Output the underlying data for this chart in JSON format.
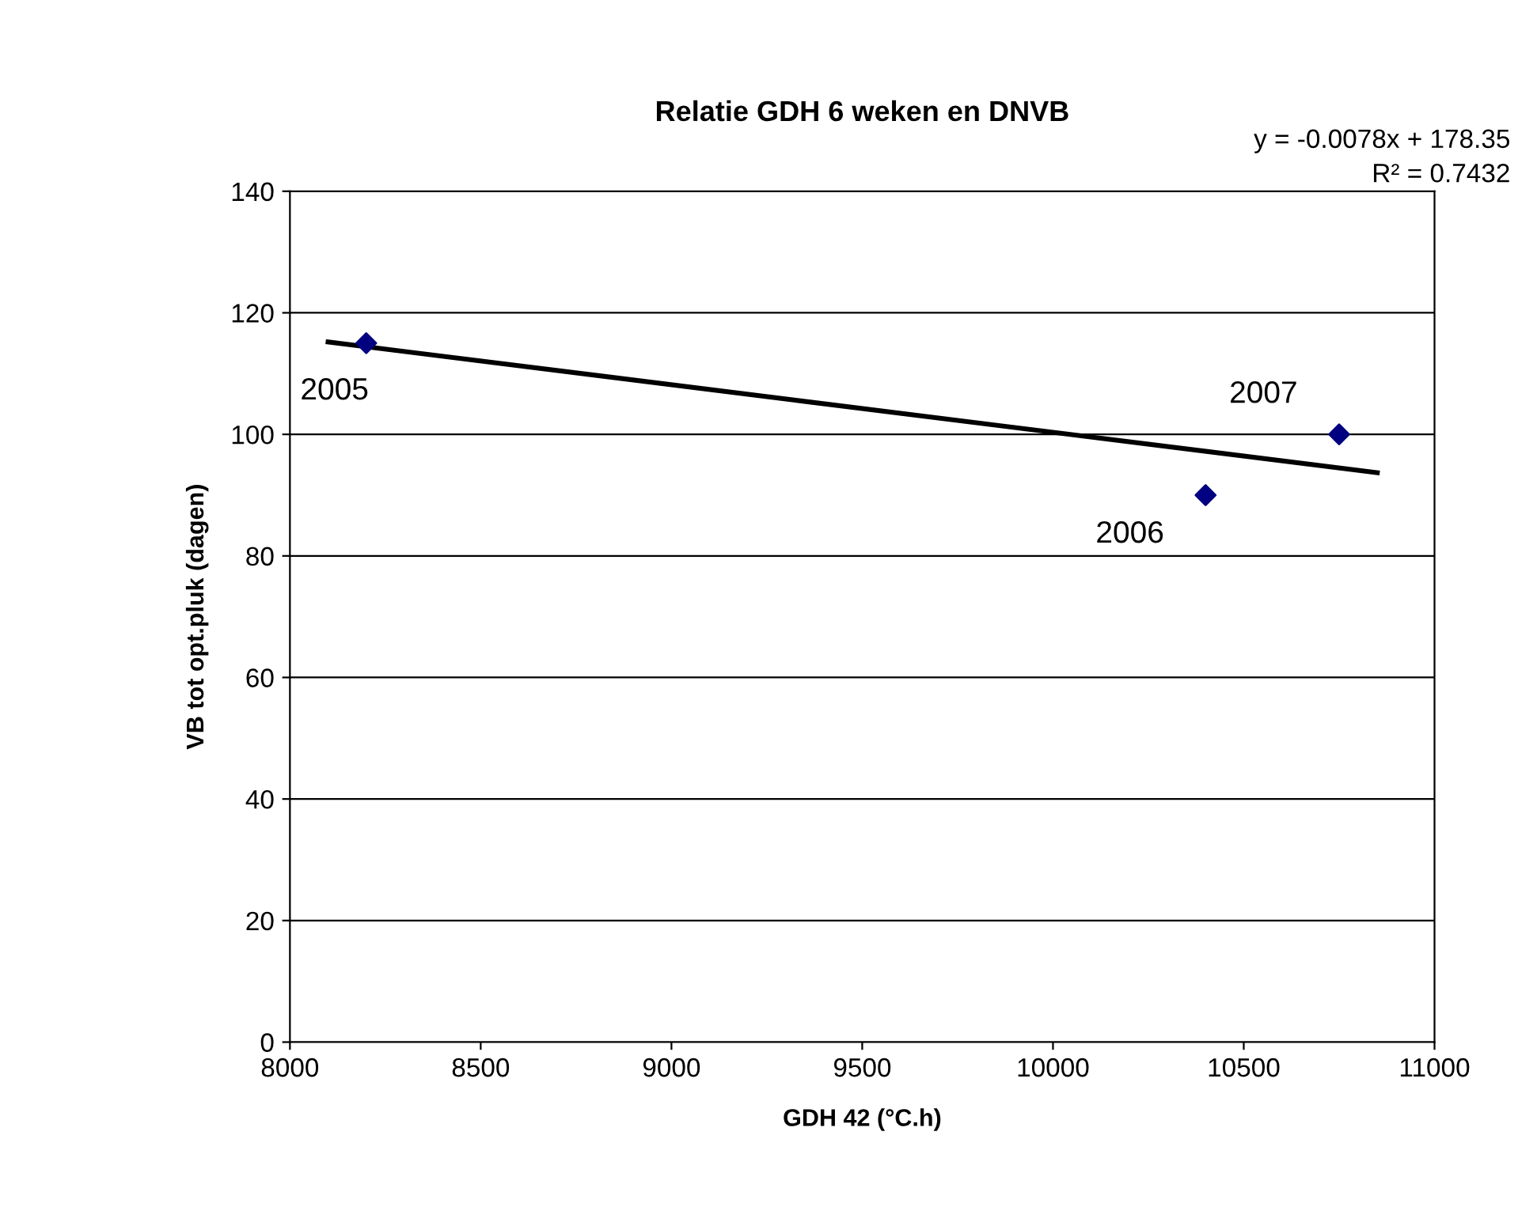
{
  "chart_data": {
    "type": "scatter",
    "title": "Relatie GDH 6 weken en DNVB",
    "xlabel": "GDH 42 (°C.h)",
    "ylabel": "VB tot opt.pluk (dagen)",
    "xlim": [
      8000,
      11000
    ],
    "xticks": [
      8000,
      8500,
      9000,
      9500,
      10000,
      10500,
      11000
    ],
    "ylim": [
      0,
      140
    ],
    "yticks": [
      0,
      20,
      40,
      60,
      80,
      100,
      120,
      140
    ],
    "grid": "y",
    "series": [
      {
        "color": "#000080",
        "marker": "diamond",
        "x": [
          8200,
          10400,
          10750
        ],
        "values": [
          115,
          90,
          100
        ]
      },
      {
        "type": "line",
        "color": "#000000",
        "marker": "none",
        "line_style": "solid",
        "x": [
          8100,
          10850
        ],
        "values": [
          115.2,
          93.7
        ]
      }
    ],
    "annotations": [
      {
        "text": "2005",
        "x": 8200,
        "y": 115
      },
      {
        "text": "2006",
        "x": 10400,
        "y": 90
      },
      {
        "text": "2007",
        "x": 10750,
        "y": 100
      },
      "y = -0.0078x + 178.35",
      "R² = 0.7432"
    ]
  }
}
